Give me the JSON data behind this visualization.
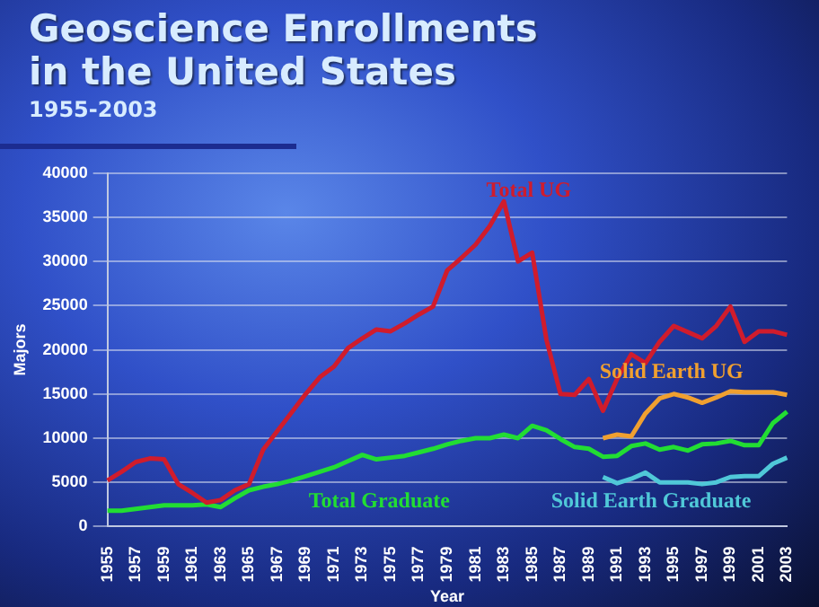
{
  "chart_data": {
    "type": "line",
    "title": "Geoscience Enrollments in the United States",
    "subtitle": "1955-2003",
    "xlabel": "Year",
    "ylabel": "Majors",
    "categories": [
      "1955",
      null,
      "1957",
      null,
      "1959",
      null,
      "1961",
      null,
      "1963",
      null,
      "1965",
      null,
      "1967",
      null,
      "1969",
      null,
      "1971",
      null,
      "1973",
      null,
      "1975",
      null,
      "1977",
      null,
      "1979",
      null,
      "1981",
      null,
      "1983",
      null,
      "1985",
      null,
      "1987",
      null,
      "1989",
      null,
      "1991",
      null,
      "1993",
      null,
      "1995",
      null,
      "1997",
      null,
      "1999",
      null,
      "2001",
      null,
      "2003"
    ],
    "series": [
      {
        "name": "Total UG",
        "color": "#d01c2c",
        "values": [
          5200,
          6200,
          7300,
          7700,
          7600,
          4800,
          3800,
          2700,
          3000,
          4100,
          4800,
          8700,
          10800,
          12900,
          15000,
          16900,
          18100,
          20200,
          21300,
          22300,
          22100,
          23000,
          24000,
          24900,
          29000,
          30400,
          31900,
          34000,
          36800,
          30000,
          31000,
          21200,
          15000,
          14900,
          16700,
          13100,
          16700,
          19500,
          18500,
          20900,
          22700,
          22000,
          21300,
          22700,
          24900,
          20900,
          22100,
          22100,
          21700
        ]
      },
      {
        "name": "Total Graduate",
        "color": "#22dd33",
        "values": [
          1800,
          1800,
          2000,
          2200,
          2400,
          2400,
          2400,
          2500,
          2200,
          3200,
          4100,
          4500,
          4800,
          5200,
          5700,
          6200,
          6700,
          7400,
          8100,
          7600,
          7800,
          8000,
          8400,
          8800,
          9300,
          9700,
          10000,
          10000,
          10400,
          10000,
          11400,
          10900,
          9900,
          9000,
          8800,
          7900,
          8000,
          9100,
          9400,
          8700,
          9000,
          8600,
          9300,
          9400,
          9700,
          9200,
          9200,
          11700,
          13000
        ]
      },
      {
        "name": "Solid Earth UG",
        "color": "#f0a030",
        "values": [
          null,
          null,
          null,
          null,
          null,
          null,
          null,
          null,
          null,
          null,
          null,
          null,
          null,
          null,
          null,
          null,
          null,
          null,
          null,
          null,
          null,
          null,
          null,
          null,
          null,
          null,
          null,
          null,
          null,
          null,
          null,
          null,
          null,
          null,
          null,
          10000,
          10400,
          10200,
          12800,
          14500,
          15000,
          14600,
          14000,
          14600,
          15300,
          15200,
          15200,
          15200,
          14900
        ]
      },
      {
        "name": "Solid Earth Graduate",
        "color": "#50c8d8",
        "values": [
          null,
          null,
          null,
          null,
          null,
          null,
          null,
          null,
          null,
          null,
          null,
          null,
          null,
          null,
          null,
          null,
          null,
          null,
          null,
          null,
          null,
          null,
          null,
          null,
          null,
          null,
          null,
          null,
          null,
          null,
          null,
          null,
          null,
          null,
          null,
          5600,
          4900,
          5400,
          6100,
          5000,
          5000,
          5000,
          4800,
          5000,
          5600,
          5700,
          5700,
          7100,
          7800
        ]
      }
    ],
    "ylim": [
      0,
      40000
    ],
    "yticks": [
      0,
      5000,
      10000,
      15000,
      20000,
      25000,
      30000,
      35000,
      40000
    ],
    "grid": "y",
    "legend": false,
    "marker": "none",
    "line_style": "solid"
  }
}
